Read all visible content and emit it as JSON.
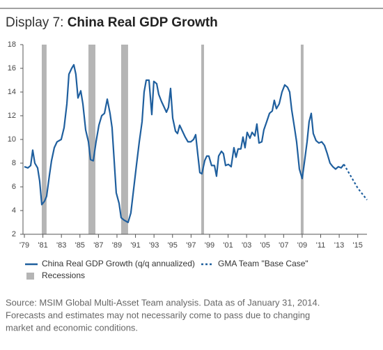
{
  "chart_data": {
    "type": "line",
    "title_prefix": "Display 7:",
    "title": "China Real GDP Growth",
    "xlim": [
      1978.85,
      2016
    ],
    "ylim": [
      2,
      18
    ],
    "yticks": [
      2,
      4,
      6,
      8,
      10,
      12,
      14,
      16,
      18
    ],
    "xticks": [
      {
        "value": 1979,
        "label": "'79"
      },
      {
        "value": 1981,
        "label": "'81"
      },
      {
        "value": 1983,
        "label": "'83"
      },
      {
        "value": 1985,
        "label": "'85"
      },
      {
        "value": 1987,
        "label": "'87"
      },
      {
        "value": 1989,
        "label": "'89"
      },
      {
        "value": 1991,
        "label": "'91"
      },
      {
        "value": 1993,
        "label": "'93"
      },
      {
        "value": 1995,
        "label": "'95"
      },
      {
        "value": 1997,
        "label": "'97"
      },
      {
        "value": 1999,
        "label": "'99"
      },
      {
        "value": 2001,
        "label": "'01"
      },
      {
        "value": 2003,
        "label": "'03"
      },
      {
        "value": 2005,
        "label": "'05"
      },
      {
        "value": 2007,
        "label": "'07"
      },
      {
        "value": 2009,
        "label": "'09"
      },
      {
        "value": 2011,
        "label": "'11"
      },
      {
        "value": 2013,
        "label": "'13"
      },
      {
        "value": 2015,
        "label": "'15"
      }
    ],
    "series": [
      {
        "name": "China Real GDP Growth (q/q annualized)",
        "color": "#1f5f9e",
        "dashed": false,
        "x": [
          1979.0,
          1979.38,
          1979.68,
          1979.9,
          1980.13,
          1980.43,
          1980.65,
          1980.88,
          1981.18,
          1981.4,
          1981.71,
          1981.93,
          1982.23,
          1982.53,
          1982.98,
          1983.29,
          1983.59,
          1983.81,
          1984.11,
          1984.34,
          1984.56,
          1984.79,
          1985.09,
          1985.32,
          1985.62,
          1985.92,
          1986.14,
          1986.44,
          1986.74,
          1987.05,
          1987.35,
          1987.65,
          1987.95,
          1988.25,
          1988.47,
          1988.7,
          1988.92,
          1989.23,
          1989.45,
          1989.75,
          1990.2,
          1990.5,
          1990.8,
          1991.1,
          1991.41,
          1991.71,
          1991.93,
          1992.16,
          1992.46,
          1992.76,
          1992.98,
          1993.29,
          1993.51,
          1993.81,
          1994.11,
          1994.34,
          1994.56,
          1994.79,
          1995.02,
          1995.32,
          1995.54,
          1995.77,
          1996.07,
          1996.37,
          1996.67,
          1996.97,
          1997.27,
          1997.5,
          1997.72,
          1997.95,
          1998.17,
          1998.47,
          1998.7,
          1998.92,
          1999.22,
          1999.53,
          1999.75,
          1999.98,
          2000.28,
          2000.5,
          2000.73,
          2001.03,
          2001.33,
          2001.63,
          2001.86,
          2002.08,
          2002.38,
          2002.61,
          2002.83,
          2003.06,
          2003.36,
          2003.59,
          2003.89,
          2004.11,
          2004.34,
          2004.64,
          2004.86,
          2005.17,
          2005.47,
          2005.77,
          2005.99,
          2006.22,
          2006.52,
          2006.82,
          2007.12,
          2007.42,
          2007.65,
          2007.87,
          2008.17,
          2008.4,
          2008.7,
          2009.0,
          2009.23,
          2009.53,
          2009.75,
          2009.98,
          2010.2,
          2010.5,
          2010.8,
          2011.11,
          2011.41,
          2011.71,
          2012.01,
          2012.31,
          2012.61,
          2012.91,
          2013.21,
          2013.51
        ],
        "values": [
          7.7,
          7.6,
          7.8,
          9.1,
          8.0,
          7.6,
          6.5,
          4.5,
          4.8,
          5.2,
          7.0,
          8.2,
          9.3,
          9.8,
          10.0,
          11.0,
          13.0,
          15.5,
          16.0,
          16.3,
          15.5,
          13.5,
          14.1,
          13.0,
          10.8,
          9.8,
          8.3,
          8.2,
          9.8,
          11.2,
          12.0,
          12.2,
          13.4,
          12.2,
          11.0,
          8.2,
          5.5,
          4.6,
          3.4,
          3.2,
          3.0,
          3.8,
          5.8,
          7.8,
          9.8,
          11.5,
          14.0,
          15.0,
          15.0,
          12.1,
          14.9,
          14.7,
          13.8,
          13.2,
          12.7,
          12.3,
          12.7,
          14.3,
          11.8,
          10.7,
          10.5,
          11.2,
          10.7,
          10.2,
          9.8,
          9.8,
          10.0,
          10.4,
          8.8,
          7.2,
          7.1,
          8.2,
          8.6,
          8.6,
          7.8,
          7.8,
          6.9,
          8.6,
          9.0,
          8.8,
          7.8,
          7.9,
          7.7,
          9.3,
          8.5,
          9.2,
          9.2,
          10.2,
          9.3,
          10.6,
          10.1,
          10.6,
          10.3,
          11.3,
          9.7,
          9.8,
          10.8,
          11.5,
          12.2,
          12.4,
          13.3,
          12.6,
          13.0,
          14.0,
          14.6,
          14.4,
          14.0,
          12.5,
          11.0,
          9.8,
          7.5,
          6.7,
          8.0,
          9.8,
          11.5,
          12.2,
          10.5,
          9.9,
          9.7,
          9.8,
          9.5,
          8.8,
          8.0,
          7.7,
          7.5,
          7.7,
          7.6,
          7.9
        ]
      },
      {
        "name": "GMA Team \"Base Case\"",
        "color": "#1f5f9e",
        "dashed": true,
        "x": [
          2013.51,
          2015.0,
          2016.0
        ],
        "values": [
          7.9,
          5.9,
          4.9
        ]
      }
    ],
    "recessions": {
      "name": "Recessions",
      "color": "#b5b5b5",
      "ranges": [
        [
          1980.88,
          1981.4
        ],
        [
          1985.92,
          1986.67
        ],
        [
          1989.45,
          1990.2
        ],
        [
          1998.1,
          1998.4
        ],
        [
          2008.85,
          2009.15
        ]
      ]
    },
    "source": [
      "Source: MSIM Global Multi-Asset Team analysis. Data as of January 31, 2014.",
      "Forecasts and estimates may not necessarily come to pass due to changing",
      "market and economic conditions."
    ]
  }
}
